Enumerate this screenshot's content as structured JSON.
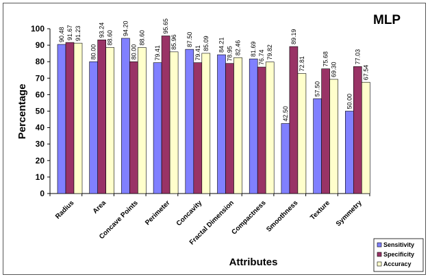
{
  "chart_data": {
    "type": "bar",
    "title": "MLP",
    "xlabel": "Attributes",
    "ylabel": "Percentage",
    "ylim": [
      0,
      100
    ],
    "yticks": [
      0,
      10,
      20,
      30,
      40,
      50,
      60,
      70,
      80,
      90,
      100
    ],
    "grid": false,
    "legend_position": "bottom-right",
    "categories": [
      "Radius",
      "Area",
      "Concave Points",
      "Perimeter",
      "Concavity",
      "Fractal Dimension",
      "Compactness",
      "Smoothness",
      "Texture",
      "Symmetry"
    ],
    "series": [
      {
        "name": "Sensitivity",
        "color": "#8080ff",
        "values": [
          90.48,
          80.0,
          94.2,
          79.41,
          87.5,
          84.21,
          81.69,
          42.5,
          57.5,
          50.0
        ]
      },
      {
        "name": "Specificity",
        "color": "#993366",
        "values": [
          91.67,
          93.24,
          80.0,
          95.65,
          79.41,
          78.95,
          76.74,
          89.19,
          75.68,
          77.03
        ]
      },
      {
        "name": "Accuracy",
        "color": "#ffffcc",
        "values": [
          91.23,
          88.6,
          88.6,
          85.96,
          85.09,
          82.46,
          79.82,
          72.81,
          69.3,
          67.54
        ]
      }
    ],
    "data_labels": [
      [
        "90.48",
        "91.67",
        "91.23"
      ],
      [
        "80.00",
        "93.24",
        "88.60"
      ],
      [
        "94.20",
        "80.00",
        "88.60"
      ],
      [
        "79.41",
        "95.65",
        "85.96"
      ],
      [
        "87.50",
        "79.41",
        "85.09"
      ],
      [
        "84.21",
        "78.95",
        "82.46"
      ],
      [
        "81.69",
        "76.74",
        "79.82"
      ],
      [
        "42.50",
        "89.19",
        "72.81"
      ],
      [
        "57.50",
        "75.68",
        "69.30"
      ],
      [
        "50.00",
        "77.03",
        "67.54"
      ]
    ]
  }
}
